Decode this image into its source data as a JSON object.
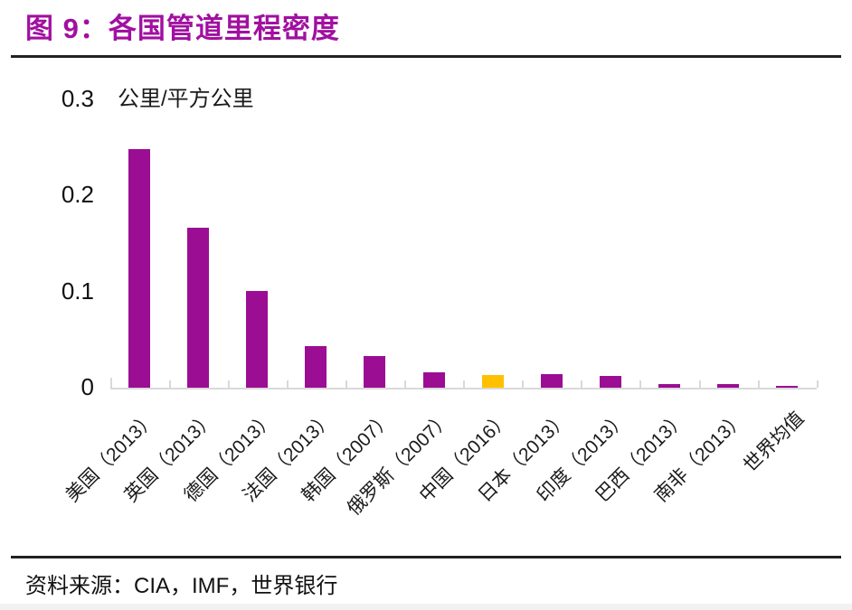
{
  "title": "图 9：各国管道里程密度",
  "chart_data": {
    "type": "bar",
    "title": "各国管道里程密度",
    "unit_label": "公里/平方公里",
    "categories": [
      "美国（2013）",
      "英国（2013）",
      "德国（2013）",
      "法国（2013）",
      "韩国（2007）",
      "俄罗斯（2007）",
      "中国（2016）",
      "日本（2013）",
      "印度（2013）",
      "巴西（2013）",
      "南非（2013）",
      "世界均值"
    ],
    "values": [
      0.248,
      0.166,
      0.1,
      0.043,
      0.033,
      0.016,
      0.013,
      0.014,
      0.012,
      0.004,
      0.004,
      0.0015
    ],
    "ylabel": "公里/平方公里",
    "ylim": [
      0,
      0.3
    ],
    "y_ticks": [
      0,
      0.1,
      0.2,
      0.3
    ],
    "y_tick_labels": [
      "0",
      "0.1",
      "0.2",
      "0.3"
    ],
    "grid": false,
    "legend": "none",
    "x_labels_rotation_deg": -45,
    "bar_color": "#9B0D93",
    "highlight_color": "#FFC000",
    "highlight_index": 6,
    "axis_color": "#D9D9D9"
  },
  "source": {
    "label": "资料来源：",
    "text": "CIA，IMF，世界银行"
  },
  "colors": {
    "title": "#A110A1",
    "divider": "#222222",
    "text": "#1A1A1A",
    "bottom_strip": "#F2F2F2"
  }
}
